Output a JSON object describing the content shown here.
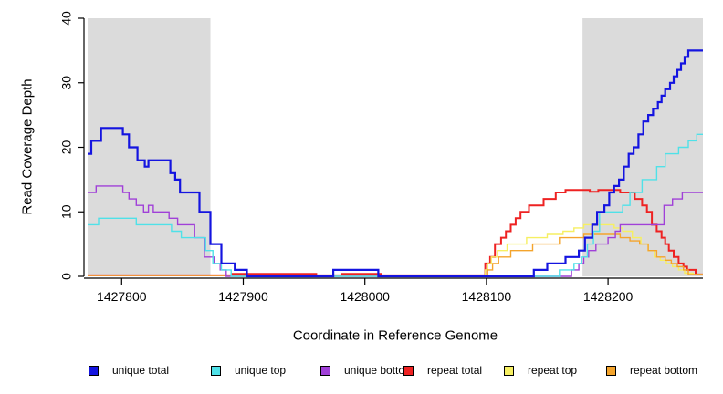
{
  "chart_data": {
    "type": "line",
    "step": true,
    "title": "",
    "xlabel": "Coordinate in Reference Genome",
    "ylabel": "Read Coverage Depth",
    "xlim": [
      1427772,
      1428278
    ],
    "ylim": [
      0,
      40
    ],
    "x_ticks": [
      1427800,
      1427900,
      1428000,
      1428100,
      1428200
    ],
    "y_ticks": [
      0,
      10,
      20,
      30,
      40
    ],
    "grid": false,
    "legend_position": "bottom",
    "axis_color": "#000000",
    "shade_color": "#DBDBDB",
    "shaded_regions": [
      {
        "from": 1427772,
        "to": 1427873
      },
      {
        "from": 1428179,
        "to": 1428278
      }
    ],
    "series": [
      {
        "name": "unique total",
        "color": "#1414E0",
        "line_width": 2.2,
        "points": [
          [
            1427772,
            19
          ],
          [
            1427775,
            21
          ],
          [
            1427783,
            23
          ],
          [
            1427801,
            22
          ],
          [
            1427806,
            20
          ],
          [
            1427813,
            18
          ],
          [
            1427819,
            17
          ],
          [
            1427822,
            18
          ],
          [
            1427840,
            16
          ],
          [
            1427844,
            15
          ],
          [
            1427848,
            13
          ],
          [
            1427864,
            10
          ],
          [
            1427873,
            5
          ],
          [
            1427882,
            2
          ],
          [
            1427893,
            1
          ],
          [
            1427903,
            0
          ],
          [
            1427974,
            1
          ],
          [
            1428011,
            0
          ],
          [
            1428139,
            1
          ],
          [
            1428150,
            2
          ],
          [
            1428165,
            3
          ],
          [
            1428176,
            4
          ],
          [
            1428181,
            6
          ],
          [
            1428187,
            8
          ],
          [
            1428191,
            10
          ],
          [
            1428197,
            11
          ],
          [
            1428201,
            13
          ],
          [
            1428205,
            14
          ],
          [
            1428209,
            15
          ],
          [
            1428213,
            17
          ],
          [
            1428217,
            19
          ],
          [
            1428221,
            20
          ],
          [
            1428225,
            22
          ],
          [
            1428229,
            24
          ],
          [
            1428233,
            25
          ],
          [
            1428237,
            26
          ],
          [
            1428241,
            27
          ],
          [
            1428244,
            28
          ],
          [
            1428247,
            29
          ],
          [
            1428251,
            30
          ],
          [
            1428254,
            31
          ],
          [
            1428257,
            32
          ],
          [
            1428260,
            33
          ],
          [
            1428263,
            34
          ],
          [
            1428266,
            35
          ]
        ]
      },
      {
        "name": "unique top",
        "color": "#4FE1E8",
        "line_width": 1.4,
        "points": [
          [
            1427772,
            8
          ],
          [
            1427781,
            9
          ],
          [
            1427812,
            8
          ],
          [
            1427841,
            7
          ],
          [
            1427849,
            6
          ],
          [
            1427869,
            4
          ],
          [
            1427875,
            2
          ],
          [
            1427882,
            1
          ],
          [
            1427890,
            0
          ],
          [
            1428160,
            1
          ],
          [
            1428172,
            2
          ],
          [
            1428178,
            3
          ],
          [
            1428183,
            5
          ],
          [
            1428188,
            7
          ],
          [
            1428193,
            10
          ],
          [
            1428212,
            11
          ],
          [
            1428218,
            13
          ],
          [
            1428228,
            15
          ],
          [
            1428240,
            17
          ],
          [
            1428247,
            19
          ],
          [
            1428258,
            20
          ],
          [
            1428266,
            21
          ],
          [
            1428273,
            22
          ]
        ]
      },
      {
        "name": "unique bottom",
        "color": "#A040D8",
        "line_width": 1.4,
        "points": [
          [
            1427772,
            13
          ],
          [
            1427779,
            14
          ],
          [
            1427801,
            13
          ],
          [
            1427806,
            12
          ],
          [
            1427812,
            11
          ],
          [
            1427818,
            10
          ],
          [
            1427822,
            11
          ],
          [
            1427826,
            10
          ],
          [
            1427839,
            9
          ],
          [
            1427846,
            8
          ],
          [
            1427860,
            6
          ],
          [
            1427868,
            3
          ],
          [
            1427876,
            2
          ],
          [
            1427881,
            1
          ],
          [
            1427886,
            0
          ],
          [
            1428170,
            1
          ],
          [
            1428176,
            2
          ],
          [
            1428180,
            3
          ],
          [
            1428184,
            4
          ],
          [
            1428190,
            5
          ],
          [
            1428200,
            6
          ],
          [
            1428206,
            7
          ],
          [
            1428210,
            8
          ],
          [
            1428246,
            11
          ],
          [
            1428253,
            12
          ],
          [
            1428261,
            13
          ]
        ]
      },
      {
        "name": "repeat total",
        "color": "#EE2222",
        "line_width": 2.0,
        "points": [
          [
            1427772,
            0.15
          ],
          [
            1427891,
            0.4
          ],
          [
            1427960,
            0.15
          ],
          [
            1427981,
            0.4
          ],
          [
            1428013,
            0.15
          ],
          [
            1428099,
            2
          ],
          [
            1428103,
            3
          ],
          [
            1428107,
            5
          ],
          [
            1428112,
            6
          ],
          [
            1428116,
            7
          ],
          [
            1428120,
            8
          ],
          [
            1428124,
            9
          ],
          [
            1428128,
            10
          ],
          [
            1428135,
            11
          ],
          [
            1428147,
            12
          ],
          [
            1428157,
            13
          ],
          [
            1428165,
            13.4
          ],
          [
            1428185,
            13.1
          ],
          [
            1428192,
            13.4
          ],
          [
            1428210,
            13
          ],
          [
            1428222,
            12
          ],
          [
            1428228,
            11
          ],
          [
            1428232,
            10
          ],
          [
            1428236,
            8
          ],
          [
            1428240,
            7
          ],
          [
            1428244,
            6
          ],
          [
            1428247,
            5
          ],
          [
            1428250,
            4
          ],
          [
            1428254,
            3
          ],
          [
            1428258,
            2
          ],
          [
            1428262,
            1.5
          ],
          [
            1428265,
            1
          ],
          [
            1428272,
            0.3
          ]
        ]
      },
      {
        "name": "repeat top",
        "color": "#F6EF62",
        "line_width": 1.4,
        "points": [
          [
            1427772,
            0.15
          ],
          [
            1428099,
            1
          ],
          [
            1428101,
            2
          ],
          [
            1428104,
            3
          ],
          [
            1428109,
            4
          ],
          [
            1428117,
            5
          ],
          [
            1428133,
            6
          ],
          [
            1428150,
            6.5
          ],
          [
            1428163,
            7
          ],
          [
            1428172,
            7.5
          ],
          [
            1428180,
            8
          ],
          [
            1428205,
            7.5
          ],
          [
            1428212,
            7
          ],
          [
            1428220,
            6
          ],
          [
            1428227,
            5
          ],
          [
            1428233,
            4
          ],
          [
            1428238,
            3
          ],
          [
            1428243,
            2.5
          ],
          [
            1428248,
            2
          ],
          [
            1428253,
            1.5
          ],
          [
            1428258,
            1
          ],
          [
            1428263,
            0.5
          ],
          [
            1428270,
            0.3
          ]
        ]
      },
      {
        "name": "repeat bottom",
        "color": "#F4A42C",
        "line_width": 1.4,
        "points": [
          [
            1427772,
            0.15
          ],
          [
            1428101,
            1
          ],
          [
            1428105,
            2
          ],
          [
            1428110,
            3
          ],
          [
            1428120,
            4
          ],
          [
            1428138,
            5
          ],
          [
            1428160,
            6
          ],
          [
            1428180,
            6.5
          ],
          [
            1428210,
            6
          ],
          [
            1428218,
            5.5
          ],
          [
            1428226,
            5
          ],
          [
            1428233,
            4
          ],
          [
            1428240,
            3
          ],
          [
            1428247,
            2.5
          ],
          [
            1428252,
            2
          ],
          [
            1428257,
            1.5
          ],
          [
            1428262,
            1
          ],
          [
            1428266,
            0.3
          ]
        ]
      }
    ]
  }
}
